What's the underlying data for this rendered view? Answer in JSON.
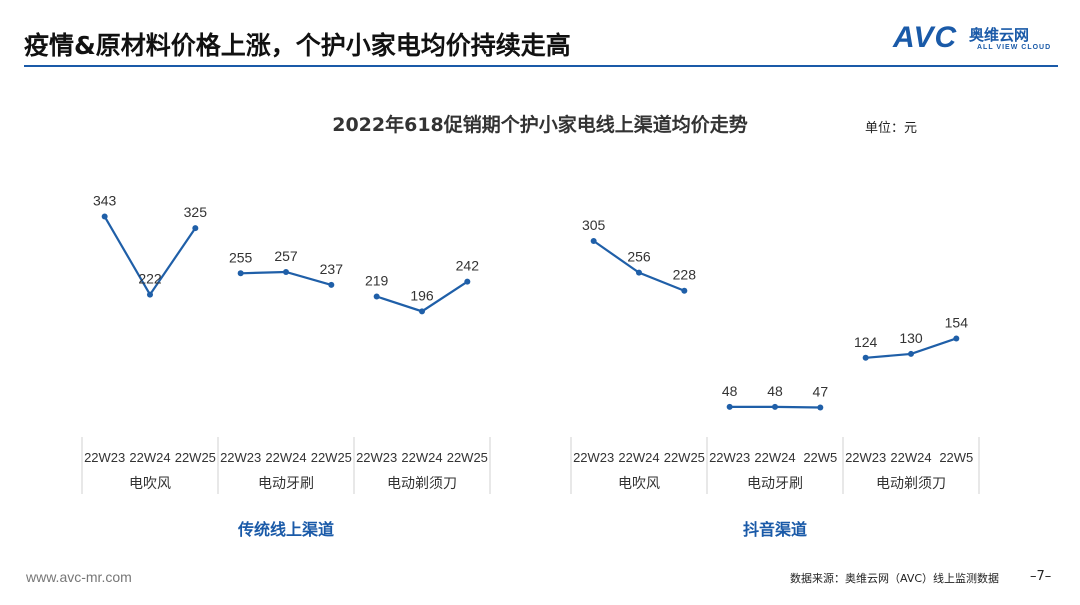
{
  "header": {
    "title": "疫情&原材料价格上涨，个护小家电均价持续走高",
    "logo": {
      "text": "AVC",
      "cn": "奥维云网",
      "en": "ALL VIEW CLOUD"
    }
  },
  "footer": {
    "url": "www.avc-mr.com",
    "source": "数据来源：奥维云网（AVC）线上监测数据",
    "page": "–7–"
  },
  "colors": {
    "accent": "#1a5aa8",
    "line": "#1f5fa8",
    "table_border": "#d0d0d0"
  },
  "chart_data": {
    "type": "line",
    "title": "2022年618促销期个护小家电线上渠道均价走势",
    "unit": "单位：元",
    "panels": [
      {
        "name": "传统线上渠道",
        "groups": [
          {
            "name": "电吹风",
            "x": [
              "22W23",
              "22W24",
              "22W25"
            ],
            "values": [
              343,
              222,
              325
            ]
          },
          {
            "name": "电动牙刷",
            "x": [
              "22W23",
              "22W24",
              "22W25"
            ],
            "values": [
              255,
              257,
              237
            ]
          },
          {
            "name": "电动剃须刀",
            "x": [
              "22W23",
              "22W24",
              "22W25"
            ],
            "values": [
              219,
              196,
              242
            ]
          }
        ]
      },
      {
        "name": "抖音渠道",
        "groups": [
          {
            "name": "电吹风",
            "x": [
              "22W23",
              "22W24",
              "22W25"
            ],
            "values": [
              305,
              256,
              228
            ]
          },
          {
            "name": "电动牙刷",
            "x": [
              "22W23",
              "22W24",
              "22W5"
            ],
            "values": [
              48,
              48,
              47
            ]
          },
          {
            "name": "电动剃须刀",
            "x": [
              "22W23",
              "22W24",
              "22W5"
            ],
            "values": [
              124,
              130,
              154
            ]
          }
        ]
      }
    ],
    "grid": false,
    "legend": "none"
  }
}
